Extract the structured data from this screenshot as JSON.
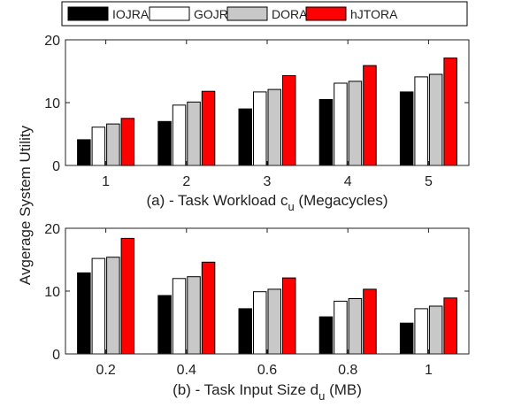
{
  "legend": {
    "entries": [
      {
        "label": "IOJRA",
        "color": "#000000"
      },
      {
        "label": "GOJRA",
        "color": "#ffffff"
      },
      {
        "label": "DORA",
        "color": "#c8c8c8"
      },
      {
        "label": "hJTORA",
        "color": "#ff0000"
      }
    ]
  },
  "shared_ylabel": "Avgerage System Utility",
  "chart_data": [
    {
      "type": "bar",
      "xlabel": "(a) - Task Workload c",
      "xlabel_sub": "u",
      "xlabel_suffix": "(Megacycles)",
      "ylim": [
        0,
        20
      ],
      "yticks": [
        0,
        10,
        20
      ],
      "categories": [
        "1",
        "2",
        "3",
        "4",
        "5"
      ],
      "grid": false,
      "series": [
        {
          "name": "IOJRA",
          "color": "#000000",
          "values": [
            4.1,
            7.0,
            9.0,
            10.5,
            11.7
          ]
        },
        {
          "name": "GOJRA",
          "color": "#ffffff",
          "values": [
            6.1,
            9.6,
            11.7,
            13.1,
            14.1
          ]
        },
        {
          "name": "DORA",
          "color": "#c8c8c8",
          "values": [
            6.6,
            10.1,
            12.1,
            13.4,
            14.5
          ]
        },
        {
          "name": "hJTORA",
          "color": "#ff0000",
          "values": [
            7.5,
            11.8,
            14.3,
            15.9,
            17.1
          ]
        }
      ]
    },
    {
      "type": "bar",
      "xlabel": "(b) - Task Input Size d",
      "xlabel_sub": "u",
      "xlabel_suffix": "(MB)",
      "ylim": [
        0,
        20
      ],
      "yticks": [
        0,
        10,
        20
      ],
      "categories": [
        "0.2",
        "0.4",
        "0.6",
        "0.8",
        "1"
      ],
      "grid": false,
      "series": [
        {
          "name": "IOJRA",
          "color": "#000000",
          "values": [
            12.9,
            9.3,
            7.2,
            5.9,
            4.9
          ]
        },
        {
          "name": "GOJRA",
          "color": "#ffffff",
          "values": [
            15.2,
            12.0,
            9.9,
            8.4,
            7.2
          ]
        },
        {
          "name": "DORA",
          "color": "#c8c8c8",
          "values": [
            15.4,
            12.3,
            10.3,
            8.8,
            7.6
          ]
        },
        {
          "name": "hJTORA",
          "color": "#ff0000",
          "values": [
            18.4,
            14.6,
            12.1,
            10.3,
            8.9
          ]
        }
      ]
    }
  ]
}
